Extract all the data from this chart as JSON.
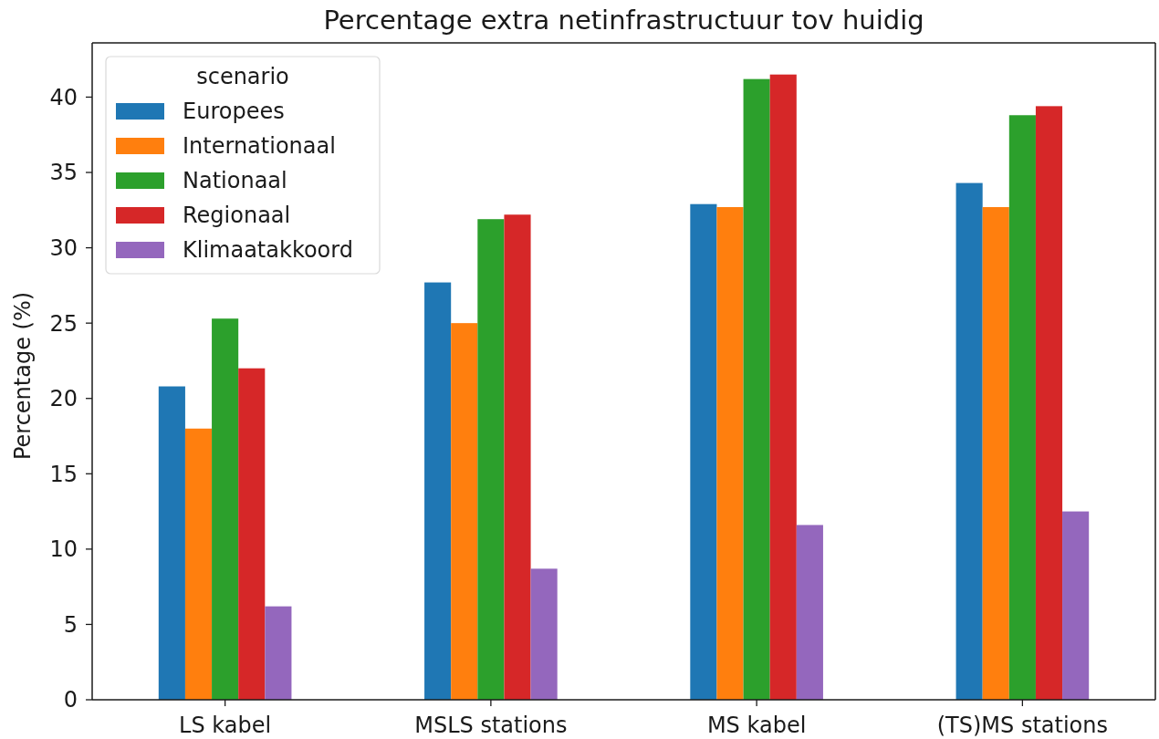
{
  "chart_data": {
    "type": "bar",
    "title": "Percentage extra netinfrastructuur tov huidig",
    "ylabel": "Percentage (%)",
    "legend_title": "scenario",
    "legend": "top left",
    "categories": [
      "LS kabel",
      "MSLS stations",
      "MS kabel",
      "(TS)MS stations"
    ],
    "series": [
      {
        "name": "Europees",
        "color": "#1f77b4",
        "values": [
          20.8,
          27.7,
          32.9,
          34.3
        ]
      },
      {
        "name": "Internationaal",
        "color": "#ff7f0e",
        "values": [
          18.0,
          25.0,
          32.7,
          32.7
        ]
      },
      {
        "name": "Nationaal",
        "color": "#2ca02c",
        "values": [
          25.3,
          31.9,
          41.2,
          38.8
        ]
      },
      {
        "name": "Regionaal",
        "color": "#d62728",
        "values": [
          22.0,
          32.2,
          41.5,
          39.4
        ]
      },
      {
        "name": "Klimaatakkoord",
        "color": "#9467bd",
        "values": [
          6.2,
          8.7,
          11.6,
          12.5
        ]
      }
    ],
    "ylim": [
      0,
      43.6
    ],
    "yticks": [
      0,
      5,
      10,
      15,
      20,
      25,
      30,
      35,
      40
    ]
  }
}
